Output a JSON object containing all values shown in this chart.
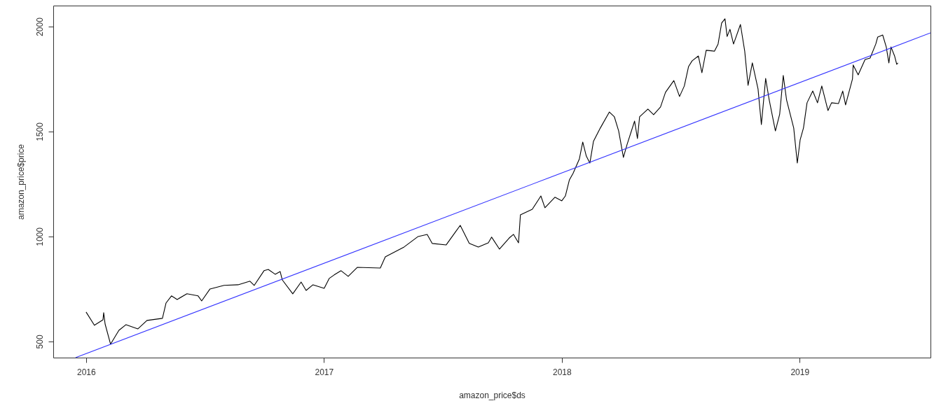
{
  "chart_data": {
    "type": "line",
    "xlabel": "amazon_price$ds",
    "ylabel": "amazon_price$price",
    "xlim": [
      2015.862,
      2019.55
    ],
    "ylim": [
      423,
      2100
    ],
    "xticks": [
      2016,
      2017,
      2018,
      2019
    ],
    "yticks": [
      500,
      1000,
      1500,
      2000
    ],
    "series": [
      {
        "color": "#000000",
        "x": [
          2016.0,
          2016.035,
          2016.071,
          2016.074,
          2016.08,
          2016.103,
          2016.138,
          2016.168,
          2016.218,
          2016.256,
          2016.321,
          2016.336,
          2016.359,
          2016.383,
          2016.424,
          2016.471,
          2016.486,
          2016.521,
          2016.58,
          2016.639,
          2016.689,
          2016.707,
          2016.748,
          2016.766,
          2016.795,
          2016.816,
          2016.825,
          2016.869,
          2016.904,
          2016.925,
          2016.954,
          2017.001,
          2017.022,
          2017.043,
          2017.072,
          2017.102,
          2017.14,
          2017.237,
          2017.258,
          2017.337,
          2017.396,
          2017.434,
          2017.455,
          2017.514,
          2017.552,
          2017.573,
          2017.611,
          2017.649,
          2017.691,
          2017.705,
          2017.738,
          2017.779,
          2017.797,
          2017.818,
          2017.826,
          2017.876,
          2017.912,
          2017.929,
          2017.971,
          2018.0,
          2018.015,
          2018.032,
          2018.047,
          2018.074,
          2018.088,
          2018.103,
          2018.118,
          2018.133,
          2018.162,
          2018.2,
          2018.221,
          2018.239,
          2018.259,
          2018.274,
          2018.306,
          2018.318,
          2018.327,
          2018.362,
          2018.386,
          2018.415,
          2018.436,
          2018.471,
          2018.495,
          2018.515,
          2018.533,
          2018.548,
          2018.574,
          2018.589,
          2018.607,
          2018.642,
          2018.657,
          2018.672,
          2018.686,
          2018.695,
          2018.707,
          2018.722,
          2018.751,
          2018.769,
          2018.783,
          2018.801,
          2018.825,
          2018.839,
          2018.857,
          2018.872,
          2018.898,
          2018.916,
          2018.931,
          2018.945,
          2018.975,
          2018.99,
          2019.002,
          2019.016,
          2019.031,
          2019.055,
          2019.075,
          2019.093,
          2019.119,
          2019.134,
          2019.163,
          2019.181,
          2019.193,
          2019.222,
          2019.225,
          2019.246,
          2019.275,
          2019.296,
          2019.32,
          2019.328,
          2019.349,
          2019.364,
          2019.375,
          2019.384,
          2019.399,
          2019.408,
          2019.413
        ],
        "values": [
          640,
          577,
          603,
          637,
          583,
          487,
          553,
          580,
          560,
          600,
          610,
          683,
          717,
          700,
          727,
          717,
          693,
          750,
          767,
          770,
          787,
          767,
          837,
          843,
          820,
          833,
          793,
          727,
          783,
          743,
          770,
          753,
          800,
          817,
          837,
          810,
          853,
          850,
          903,
          950,
          1000,
          1010,
          967,
          960,
          1020,
          1053,
          967,
          950,
          970,
          997,
          940,
          993,
          1010,
          970,
          1103,
          1130,
          1193,
          1137,
          1187,
          1170,
          1193,
          1270,
          1300,
          1370,
          1450,
          1383,
          1350,
          1453,
          1517,
          1593,
          1570,
          1503,
          1377,
          1437,
          1550,
          1467,
          1570,
          1607,
          1580,
          1617,
          1687,
          1743,
          1667,
          1717,
          1810,
          1837,
          1860,
          1780,
          1887,
          1883,
          1917,
          2017,
          2037,
          1953,
          1987,
          1917,
          2010,
          1883,
          1720,
          1827,
          1703,
          1533,
          1753,
          1650,
          1503,
          1583,
          1767,
          1650,
          1517,
          1350,
          1460,
          1517,
          1637,
          1693,
          1637,
          1717,
          1600,
          1637,
          1633,
          1693,
          1627,
          1750,
          1817,
          1770,
          1843,
          1850,
          1917,
          1950,
          1960,
          1903,
          1827,
          1903,
          1860,
          1820,
          1827
        ]
      },
      {
        "type": "line",
        "color": "#3333ff",
        "x": [
          2015.956,
          2019.55
        ],
        "values": [
          423,
          1970
        ]
      }
    ]
  }
}
